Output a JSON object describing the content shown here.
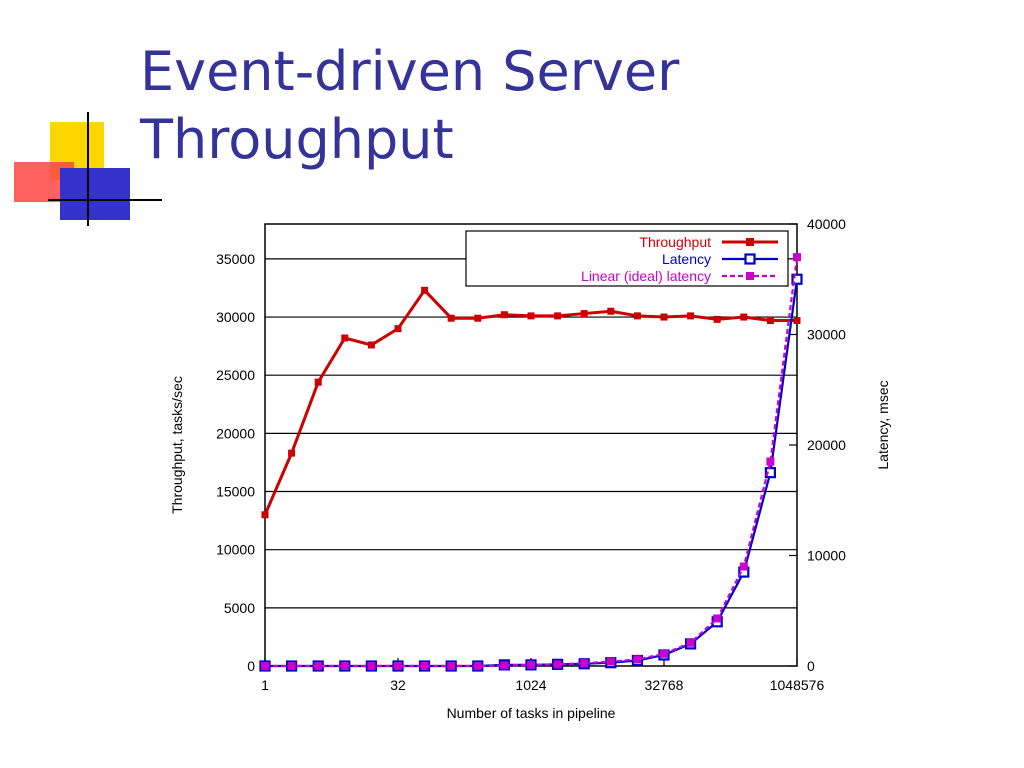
{
  "slide": {
    "title_line1": "Event-driven Server",
    "title_line2": "Throughput"
  },
  "colors": {
    "title": "#333399",
    "throughput": "#cc0000",
    "latency": "#0000cc",
    "linear": "#cc00cc",
    "deco_yellow": "#ffd700",
    "deco_red": "#ff4444",
    "deco_blue": "#3333cc"
  },
  "chart_data": {
    "type": "line",
    "xlabel": "Number of tasks in pipeline",
    "ylabel": "Throughput, tasks/sec",
    "y2label": "Latency, msec",
    "xscale": "log2",
    "xlim": [
      1,
      1048576
    ],
    "ylim": [
      0,
      38000
    ],
    "y2lim": [
      0,
      40000
    ],
    "xticks": [
      {
        "value": 1,
        "label": "1"
      },
      {
        "value": 32,
        "label": "32"
      },
      {
        "value": 1024,
        "label": "1024"
      },
      {
        "value": 32768,
        "label": "32768"
      },
      {
        "value": 1048576,
        "label": "1048576"
      }
    ],
    "yticks": [
      {
        "value": 0,
        "label": "0"
      },
      {
        "value": 5000,
        "label": "5000"
      },
      {
        "value": 10000,
        "label": "10000"
      },
      {
        "value": 15000,
        "label": "15000"
      },
      {
        "value": 20000,
        "label": "20000"
      },
      {
        "value": 25000,
        "label": "25000"
      },
      {
        "value": 30000,
        "label": "30000"
      },
      {
        "value": 35000,
        "label": "35000"
      }
    ],
    "y2ticks": [
      {
        "value": 0,
        "label": "0"
      },
      {
        "value": 10000,
        "label": "10000"
      },
      {
        "value": 20000,
        "label": "20000"
      },
      {
        "value": 30000,
        "label": "30000"
      },
      {
        "value": 40000,
        "label": "40000"
      }
    ],
    "grid": "horizontal",
    "legend_position": "top-right",
    "x": [
      1,
      2,
      4,
      8,
      16,
      32,
      64,
      128,
      256,
      512,
      1024,
      2048,
      4096,
      8192,
      16384,
      32768,
      65536,
      131072,
      262144,
      524288,
      1048576
    ],
    "series": [
      {
        "name": "Throughput",
        "axis": "left",
        "marker": "filled-square",
        "values": [
          13000,
          18300,
          24400,
          28200,
          27600,
          29000,
          32300,
          29900,
          29900,
          30200,
          30100,
          30100,
          30300,
          30500,
          30100,
          30000,
          30100,
          29800,
          30000,
          29700,
          29700
        ]
      },
      {
        "name": "Latency",
        "axis": "right",
        "marker": "open-square",
        "values": [
          0,
          0,
          0,
          0,
          0,
          0,
          0,
          0,
          0,
          100,
          100,
          150,
          200,
          300,
          500,
          1000,
          2000,
          4000,
          8500,
          17500,
          35000
        ]
      },
      {
        "name": "Linear (ideal) latency",
        "axis": "right",
        "marker": "filled-square-dashed",
        "values": [
          0,
          0,
          0,
          0,
          0,
          0,
          0,
          0,
          0,
          50,
          100,
          150,
          250,
          400,
          600,
          1100,
          2100,
          4300,
          9000,
          18500,
          37000
        ]
      }
    ]
  }
}
